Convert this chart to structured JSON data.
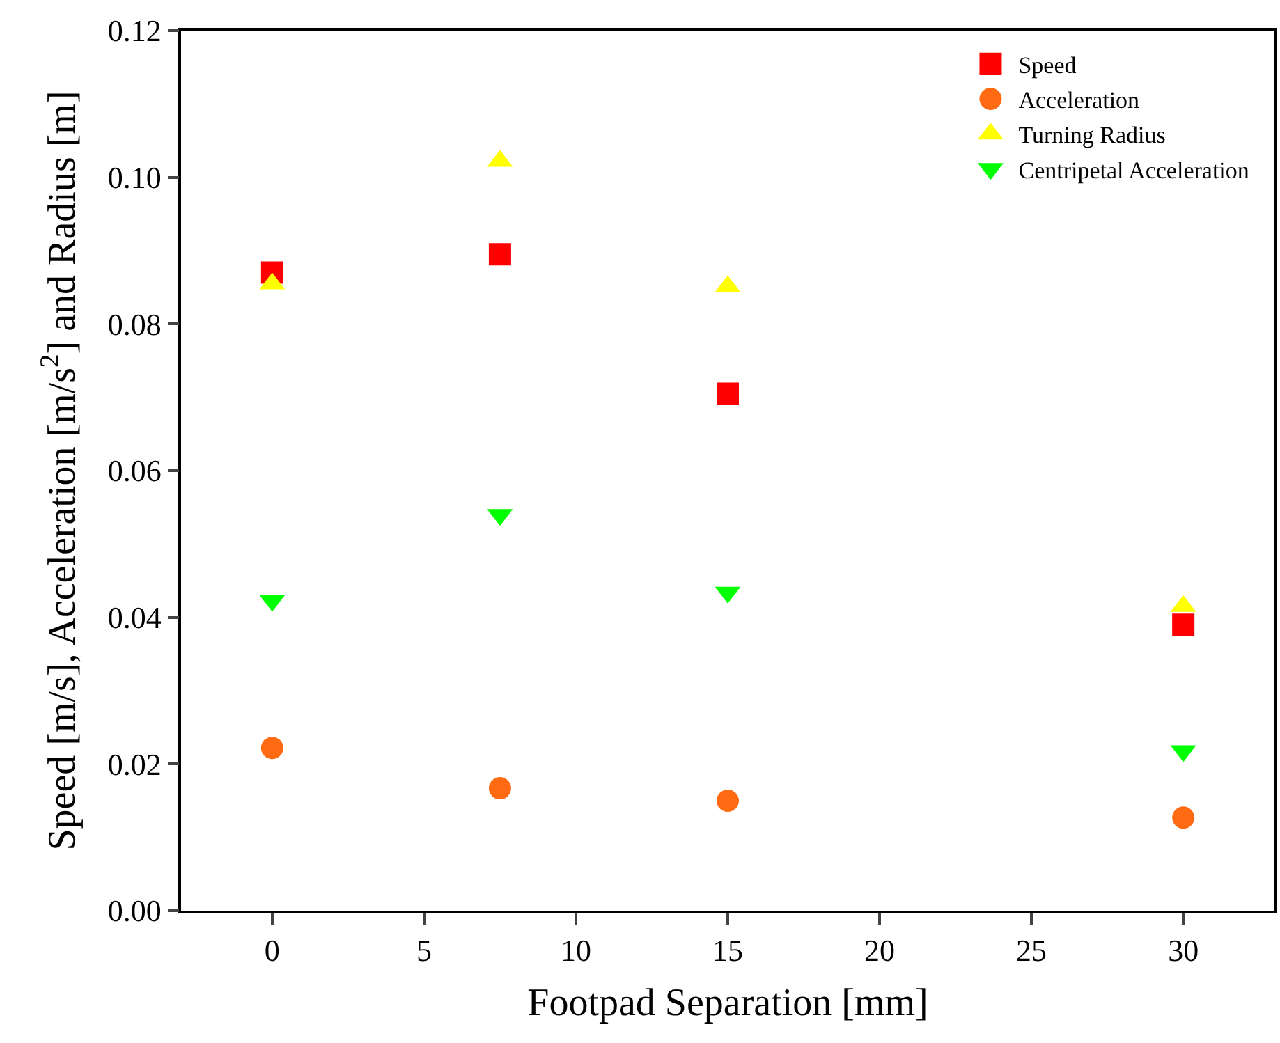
{
  "chart_data": {
    "type": "scatter",
    "xlabel": "Footpad Separation [mm]",
    "ylabel": "Speed [m/s], Acceleration [m/s$^{2}$] and Radius [m]",
    "x": [
      0,
      7.5,
      15,
      30
    ],
    "series": [
      {
        "name": "Speed",
        "color": "#ff0000",
        "marker": "square",
        "values": [
          0.087,
          0.0895,
          0.0705,
          0.039
        ]
      },
      {
        "name": "Acceleration",
        "color": "#ff6a13",
        "marker": "circle",
        "values": [
          0.0222,
          0.0167,
          0.015,
          0.0127
        ]
      },
      {
        "name": "Turning Radius",
        "color": "#ffff00",
        "marker": "triangle",
        "values": [
          0.0855,
          0.1022,
          0.0851,
          0.0415
        ]
      },
      {
        "name": "Centripetal Acceleration",
        "color": "#00ff00",
        "marker": "triangle-down",
        "values": [
          0.0423,
          0.054,
          0.0434,
          0.0218
        ]
      }
    ],
    "xlim": [
      -3,
      33
    ],
    "xticks": [
      0,
      5,
      10,
      15,
      20,
      25,
      30
    ],
    "ylim": [
      0,
      0.12
    ],
    "yticks": [
      {
        "value": 0,
        "label": "0.00"
      },
      {
        "value": 0.02,
        "label": "0.02"
      },
      {
        "value": 0.04,
        "label": "0.04"
      },
      {
        "value": 0.06,
        "label": "0.06"
      },
      {
        "value": 0.08,
        "label": "0.08"
      },
      {
        "value": 0.1,
        "label": "0.10"
      },
      {
        "value": 0.12,
        "label": "0.12"
      }
    ],
    "legend": "top right"
  }
}
